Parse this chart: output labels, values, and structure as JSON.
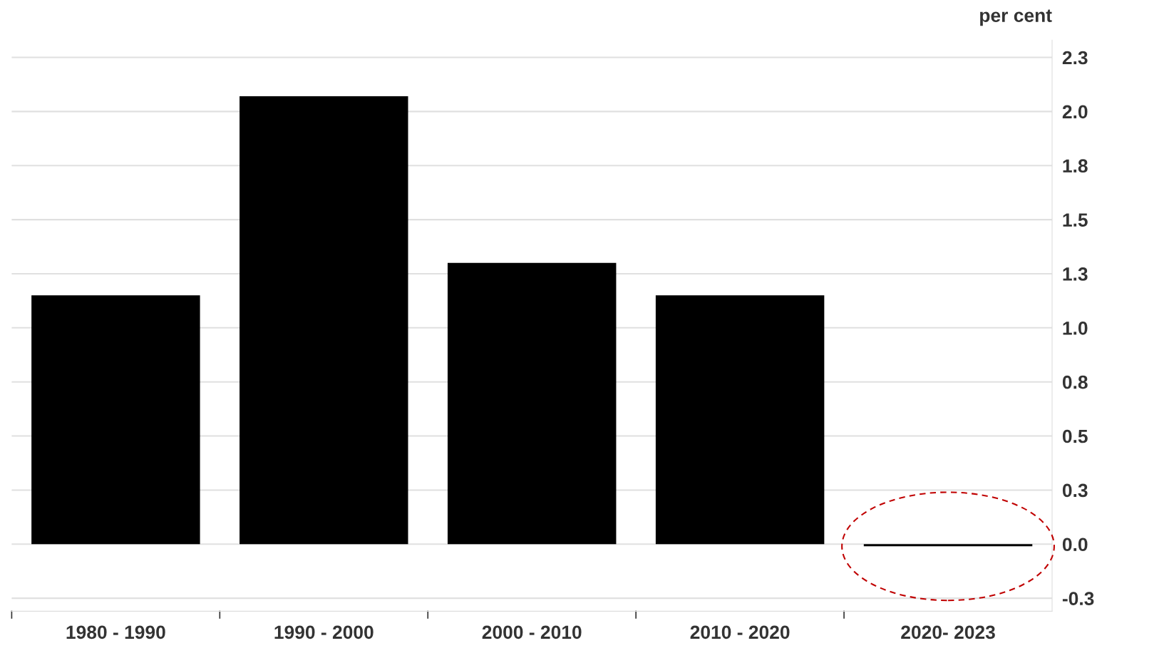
{
  "chart_data": {
    "type": "bar",
    "ylabel": "per cent",
    "categories": [
      "1980 - 1990",
      "1990 - 2000",
      "2000 - 2010",
      "2010 - 2020",
      "2020- 2023"
    ],
    "values": [
      1.15,
      2.07,
      1.3,
      1.15,
      -0.01
    ],
    "color": "#000000",
    "ylim": [
      -0.31,
      2.33
    ],
    "yticks": [
      {
        "value": -0.25,
        "label": "-0.3"
      },
      {
        "value": 0,
        "label": "0.0"
      },
      {
        "value": 0.25,
        "label": "0.3"
      },
      {
        "value": 0.5,
        "label": "0.5"
      },
      {
        "value": 0.75,
        "label": "0.8"
      },
      {
        "value": 1.0,
        "label": "1.0"
      },
      {
        "value": 1.25,
        "label": "1.3"
      },
      {
        "value": 1.5,
        "label": "1.5"
      },
      {
        "value": 1.75,
        "label": "1.8"
      },
      {
        "value": 2.0,
        "label": "2.0"
      },
      {
        "value": 2.25,
        "label": "2.3"
      }
    ],
    "grid": "y"
  }
}
